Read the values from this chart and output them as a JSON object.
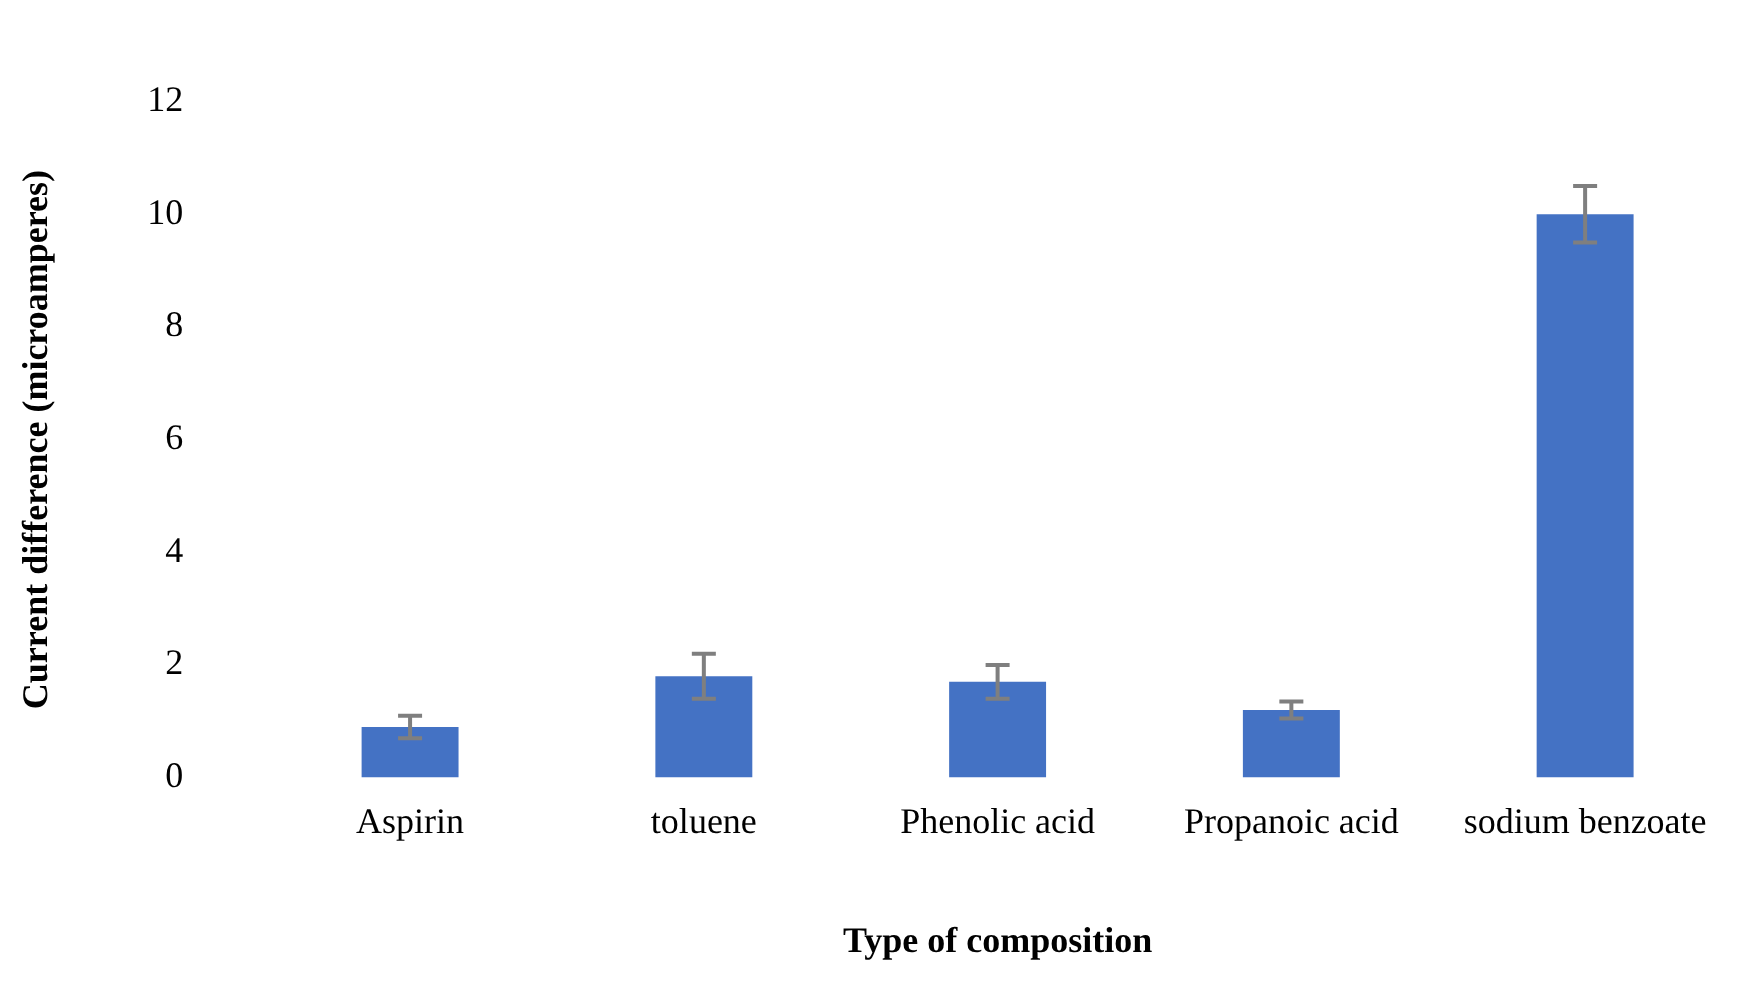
{
  "chart_data": {
    "type": "bar",
    "xlabel": "Type of composition",
    "ylabel": "Current difference (microamperes)",
    "categories": [
      "Aspirin",
      "toluene",
      "Phenolic acid",
      "Propanoic acid",
      "sodium benzoate"
    ],
    "values": [
      0.9,
      1.8,
      1.7,
      1.2,
      10.0
    ],
    "errors": [
      0.2,
      0.4,
      0.3,
      0.15,
      0.5
    ],
    "color": "#4472c4",
    "ylim": [
      0,
      12
    ],
    "yticks": [
      0,
      2,
      4,
      6,
      8,
      10,
      12
    ],
    "grid": false,
    "legend": false
  }
}
